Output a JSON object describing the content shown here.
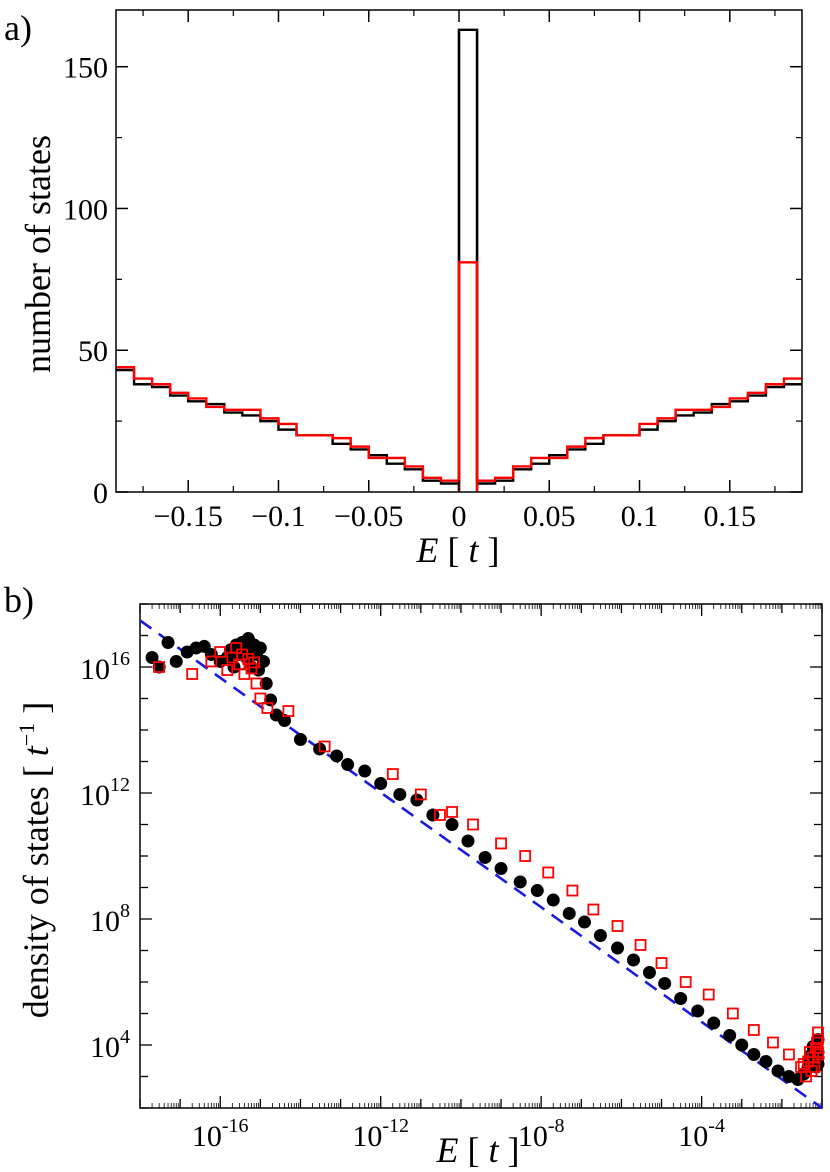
{
  "chart_data": [
    {
      "panel_label": "a)",
      "type": "histogram",
      "xlabel_var": "E",
      "xlabel_unit": "t",
      "ylabel": "number of states",
      "xlim": [
        -0.19,
        0.19
      ],
      "ylim": [
        0,
        170
      ],
      "xticks": [
        -0.15,
        -0.1,
        -0.05,
        0,
        0.05,
        0.1,
        0.15
      ],
      "xtick_labels": [
        "−0.15",
        "−0.1",
        "−0.05",
        "0",
        "0.05",
        "0.1",
        "0.15"
      ],
      "yticks": [
        0,
        50,
        100,
        150
      ],
      "ytick_labels": [
        "0",
        "50",
        "100",
        "150"
      ],
      "bin_width": 0.01,
      "bin_left_edges": [
        -0.19,
        -0.18,
        -0.17,
        -0.16,
        -0.15,
        -0.14,
        -0.13,
        -0.12,
        -0.11,
        -0.1,
        -0.09,
        -0.08,
        -0.07,
        -0.06,
        -0.05,
        -0.04,
        -0.03,
        -0.02,
        -0.01,
        0.0,
        0.01,
        0.02,
        0.03,
        0.04,
        0.05,
        0.06,
        0.07,
        0.08,
        0.09,
        0.1,
        0.11,
        0.12,
        0.13,
        0.14,
        0.15,
        0.16,
        0.17,
        0.18
      ],
      "series": [
        {
          "color": "#000000",
          "values": [
            43,
            38,
            37,
            34,
            32,
            31,
            28,
            27,
            25,
            22,
            20,
            20,
            17,
            15,
            13,
            10,
            8,
            4,
            3,
            163,
            3,
            4,
            8,
            10,
            13,
            15,
            17,
            20,
            20,
            22,
            25,
            27,
            28,
            31,
            32,
            34,
            37,
            38
          ]
        },
        {
          "color": "#ff0000",
          "values": [
            44,
            40,
            38,
            35,
            33,
            30,
            29,
            29,
            26,
            24,
            20,
            20,
            19,
            16,
            12,
            12,
            9,
            5,
            4,
            81,
            4,
            5,
            9,
            12,
            12,
            16,
            19,
            20,
            20,
            24,
            26,
            29,
            29,
            30,
            33,
            35,
            38,
            40
          ]
        }
      ],
      "grid": false
    },
    {
      "panel_label": "b)",
      "type": "scatter",
      "xscale": "log",
      "yscale": "log",
      "xlabel_var": "E",
      "xlabel_unit": "t",
      "ylabel_text": "density of states",
      "ylabel_unit_var": "t",
      "ylabel_unit_exp": "−1",
      "xlim": [
        1e-18,
        0.1
      ],
      "ylim": [
        100,
        1e+18
      ],
      "xtick_base": "10",
      "xtick_exps": [
        "-16",
        "-12",
        "-8",
        "-4"
      ],
      "ytick_base": "10",
      "ytick_exps": [
        "4",
        "8",
        "12",
        "16"
      ],
      "fit_line": {
        "color": "#1a1adc",
        "style": "dashed",
        "x": [
          1e-18,
          0.1
        ],
        "y": [
          3e+17,
          100
        ]
      },
      "series": [
        {
          "marker": "filled-circle",
          "color": "#000000",
          "points": [
            [
              2e-18,
              2e+16
            ],
            [
              3e-18,
              1e+16
            ],
            [
              5e-18,
              6e+16
            ],
            [
              8e-18,
              1.5e+16
            ],
            [
              1.5e-17,
              3e+16
            ],
            [
              2.5e-17,
              4e+16
            ],
            [
              4e-17,
              4.5e+16
            ],
            [
              6e-17,
              2.5e+16
            ],
            [
              1e-16,
              1.5e+16
            ],
            [
              1.5e-16,
              2e+16
            ],
            [
              1.8e-16,
              3.5e+16
            ],
            [
              2.2e-16,
              1e+16
            ],
            [
              2.5e-16,
              5e+16
            ],
            [
              3e-16,
              2.5e+16
            ],
            [
              3.5e-16,
              6e+16
            ],
            [
              4e-16,
              4e+16
            ],
            [
              4.5e-16,
              2e+16
            ],
            [
              5e-16,
              8e+16
            ],
            [
              5.5e-16,
              3e+16
            ],
            [
              6e-16,
              1e+16
            ],
            [
              7e-16,
              5e+16
            ],
            [
              8e-16,
              2.5e+16
            ],
            [
              9e-16,
              8000000000000000.0
            ],
            [
              1e-15,
              4e+16
            ],
            [
              1.2e-15,
              1.5e+16
            ],
            [
              1.4e-15,
              3000000000000000.0
            ],
            [
              1.8e-15,
              900000000000000.0
            ],
            [
              2.5e-15,
              300000000000000.0
            ],
            [
              4e-15,
              200000000000000.0
            ],
            [
              1e-14,
              50000000000000.0
            ],
            [
              3e-14,
              25000000000000.0
            ],
            [
              8e-14,
              15000000000000.0
            ],
            [
              1.5e-13,
              8000000000000.0
            ],
            [
              4e-13,
              5000000000000.0
            ],
            [
              1e-12,
              2000000000000.0
            ],
            [
              3e-12,
              900000000000.0
            ],
            [
              8e-12,
              600000000000.0
            ],
            [
              2e-11,
              200000000000.0
            ],
            [
              6e-11,
              100000000000.0
            ],
            [
              1.5e-10,
              30000000000.0
            ],
            [
              4e-10,
              9000000000.0
            ],
            [
              1e-09,
              4000000000.0
            ],
            [
              3e-09,
              1500000000.0
            ],
            [
              8e-09,
              800000000.0
            ],
            [
              2e-08,
              400000000.0
            ],
            [
              5e-08,
              150000000.0
            ],
            [
              1.2e-07,
              80000000.0
            ],
            [
              3e-07,
              30000000.0
            ],
            [
              8e-07,
              12000000.0
            ],
            [
              2e-06,
              5000000.0
            ],
            [
              5e-06,
              2000000.0
            ],
            [
              1.2e-05,
              900000.0
            ],
            [
              3e-05,
              300000.0
            ],
            [
              8e-05,
              120000.0
            ],
            [
              0.0002,
              50000.0
            ],
            [
              0.0005,
              20000.0
            ],
            [
              0.001,
              10000.0
            ],
            [
              0.002,
              5000.0
            ],
            [
              0.004,
              3000.0
            ],
            [
              0.008,
              1500.0
            ],
            [
              0.015,
              1000.0
            ],
            [
              0.025,
              800.0
            ],
            [
              0.035,
              1200.0
            ],
            [
              0.045,
              2000.0
            ],
            [
              0.055,
              5000.0
            ],
            [
              0.065,
              3000.0
            ],
            [
              0.075,
              8000.0
            ],
            [
              0.085,
              15000.0
            ],
            [
              0.09,
              4000.0
            ],
            [
              0.095,
              2500.0
            ],
            [
              0.07,
              2000.0
            ],
            [
              0.06,
              9000.0
            ],
            [
              0.08,
              6000.0
            ],
            [
              0.05,
              3500.0
            ]
          ]
        },
        {
          "marker": "open-square",
          "color": "#ff0000",
          "points": [
            [
              3e-18,
              1e+16
            ],
            [
              2e-17,
              6000000000000000.0
            ],
            [
              6e-17,
              1.5e+16
            ],
            [
              1e-16,
              3e+16
            ],
            [
              1.5e-16,
              8000000000000000.0
            ],
            [
              2e-16,
              2e+16
            ],
            [
              2.5e-16,
              4e+16
            ],
            [
              3e-16,
              1.2e+16
            ],
            [
              3.5e-16,
              2.5e+16
            ],
            [
              4e-16,
              6000000000000000.0
            ],
            [
              5e-16,
              1.8e+16
            ],
            [
              6e-16,
              9000000000000000.0
            ],
            [
              7e-16,
              1.4e+16
            ],
            [
              8e-16,
              3000000000000000.0
            ],
            [
              1e-15,
              1000000000000000.0
            ],
            [
              1.5e-15,
              500000000000000.0
            ],
            [
              5e-15,
              400000000000000.0
            ],
            [
              4e-14,
              30000000000000.0
            ],
            [
              2e-12,
              4000000000000.0
            ],
            [
              1e-11,
              900000000000.0
            ],
            [
              3e-11,
              200000000000.0
            ],
            [
              6e-11,
              250000000000.0
            ],
            [
              2e-10,
              100000000000.0
            ],
            [
              1e-09,
              25000000000.0
            ],
            [
              4e-09,
              10000000000.0
            ],
            [
              1.5e-08,
              3000000000.0
            ],
            [
              6e-08,
              800000000.0
            ],
            [
              2e-07,
              200000000.0
            ],
            [
              8e-07,
              60000000.0
            ],
            [
              3e-06,
              15000000.0
            ],
            [
              1e-05,
              4000000.0
            ],
            [
              4e-05,
              1000000.0
            ],
            [
              0.00015,
              400000.0
            ],
            [
              0.0006,
              100000.0
            ],
            [
              0.002,
              30000.0
            ],
            [
              0.006,
              12000.0
            ],
            [
              0.015,
              5000.0
            ],
            [
              0.03,
              2000.0
            ],
            [
              0.04,
              1000.0
            ],
            [
              0.045,
              3000.0
            ],
            [
              0.055,
              1500.0
            ],
            [
              0.06,
              4000.0
            ],
            [
              0.065,
              2000.0
            ],
            [
              0.07,
              8000.0
            ],
            [
              0.075,
              12000.0
            ],
            [
              0.08,
              5000.0
            ],
            [
              0.085,
              25000.0
            ],
            [
              0.09,
              15000.0
            ],
            [
              0.095,
              6000.0
            ],
            [
              0.035,
              2500.0
            ],
            [
              0.05,
              6000.0
            ]
          ]
        }
      ],
      "grid": false
    }
  ]
}
